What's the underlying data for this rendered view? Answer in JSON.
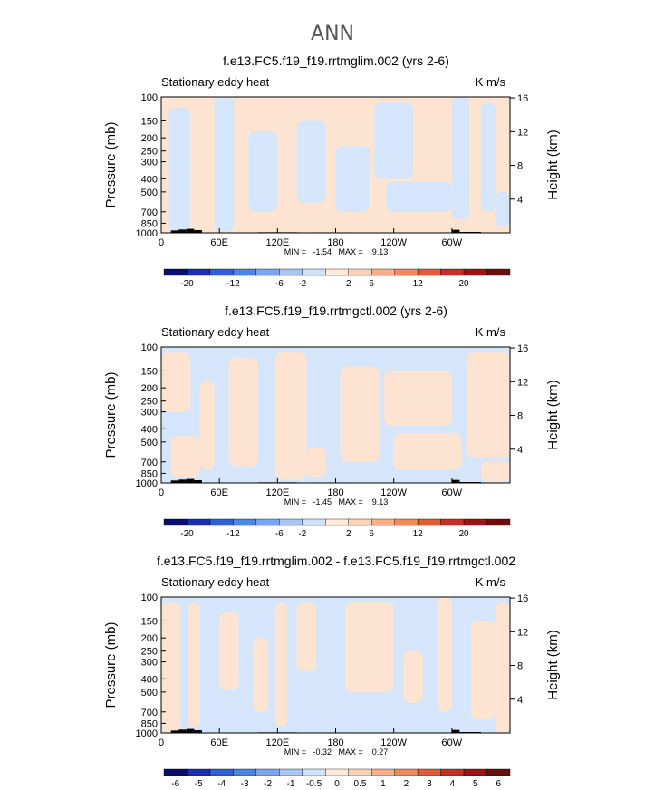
{
  "figure": {
    "title": "ANN"
  },
  "colorbar": {
    "colors": [
      "#0a0f6e",
      "#1c2fb0",
      "#2f5fd4",
      "#4a85e8",
      "#78a7f0",
      "#a8c6f5",
      "#cfe3fa",
      "#ffe9d9",
      "#fbd2b3",
      "#f7af86",
      "#f08a5c",
      "#e15b38",
      "#c63024",
      "#9c1414",
      "#6b0e0e"
    ]
  },
  "chart_data": [
    {
      "type": "heatmap",
      "title": "f.e13.FC5.f19_f19.rrtmglim.002 (yrs 2-6)",
      "subtitle_left": "Stationary eddy heat",
      "subtitle_right": "K m/s",
      "ylabel": "Pressure (mb)",
      "ylabel_right": "Height (km)",
      "yticks": [
        "100",
        "150",
        "200",
        "250",
        "300",
        "400",
        "500",
        "700",
        "850",
        "1000"
      ],
      "yticks_right": [
        "16",
        "12",
        "8",
        "4"
      ],
      "xticks": [
        "0",
        "60E",
        "120E",
        "180",
        "120W",
        "60W"
      ],
      "minmax": "MIN =   -1.54   MAX =    9.13",
      "cbar_labels": [
        "-20",
        "-12",
        "-6",
        "-2",
        "2",
        "6",
        "12",
        "20"
      ],
      "field": "mostly_positive"
    },
    {
      "type": "heatmap",
      "title": "f.e13.FC5.f19_f19.rrtmgctl.002 (yrs 2-6)",
      "subtitle_left": "Stationary eddy heat",
      "subtitle_right": "K m/s",
      "ylabel": "Pressure (mb)",
      "ylabel_right": "Height (km)",
      "yticks": [
        "100",
        "150",
        "200",
        "250",
        "300",
        "400",
        "500",
        "700",
        "850",
        "1000"
      ],
      "yticks_right": [
        "16",
        "12",
        "8",
        "4"
      ],
      "xticks": [
        "0",
        "60E",
        "120E",
        "180",
        "120W",
        "60W"
      ],
      "minmax": "MIN =   -1.45   MAX =    9.13",
      "cbar_labels": [
        "-20",
        "-12",
        "-6",
        "-2",
        "2",
        "6",
        "12",
        "20"
      ],
      "field": "mixed"
    },
    {
      "type": "heatmap",
      "title": "f.e13.FC5.f19_f19.rrtmglim.002 - f.e13.FC5.f19_f19.rrtmgctl.002",
      "subtitle_left": "Stationary eddy heat",
      "subtitle_right": "K m/s",
      "ylabel": "Pressure (mb)",
      "ylabel_right": "Height (km)",
      "yticks": [
        "100",
        "150",
        "200",
        "250",
        "300",
        "400",
        "500",
        "700",
        "850",
        "1000"
      ],
      "yticks_right": [
        "16",
        "12",
        "8",
        "4"
      ],
      "xticks": [
        "0",
        "60E",
        "120E",
        "180",
        "120W",
        "60W"
      ],
      "minmax": "MIN =   -0.32   MAX =    0.27",
      "cbar_labels": [
        "-6",
        "-5",
        "-4",
        "-3",
        "-2",
        "-1",
        "-0.5",
        "0",
        "0.5",
        "1",
        "2",
        "3",
        "4",
        "5",
        "6"
      ],
      "field": "difference"
    }
  ]
}
